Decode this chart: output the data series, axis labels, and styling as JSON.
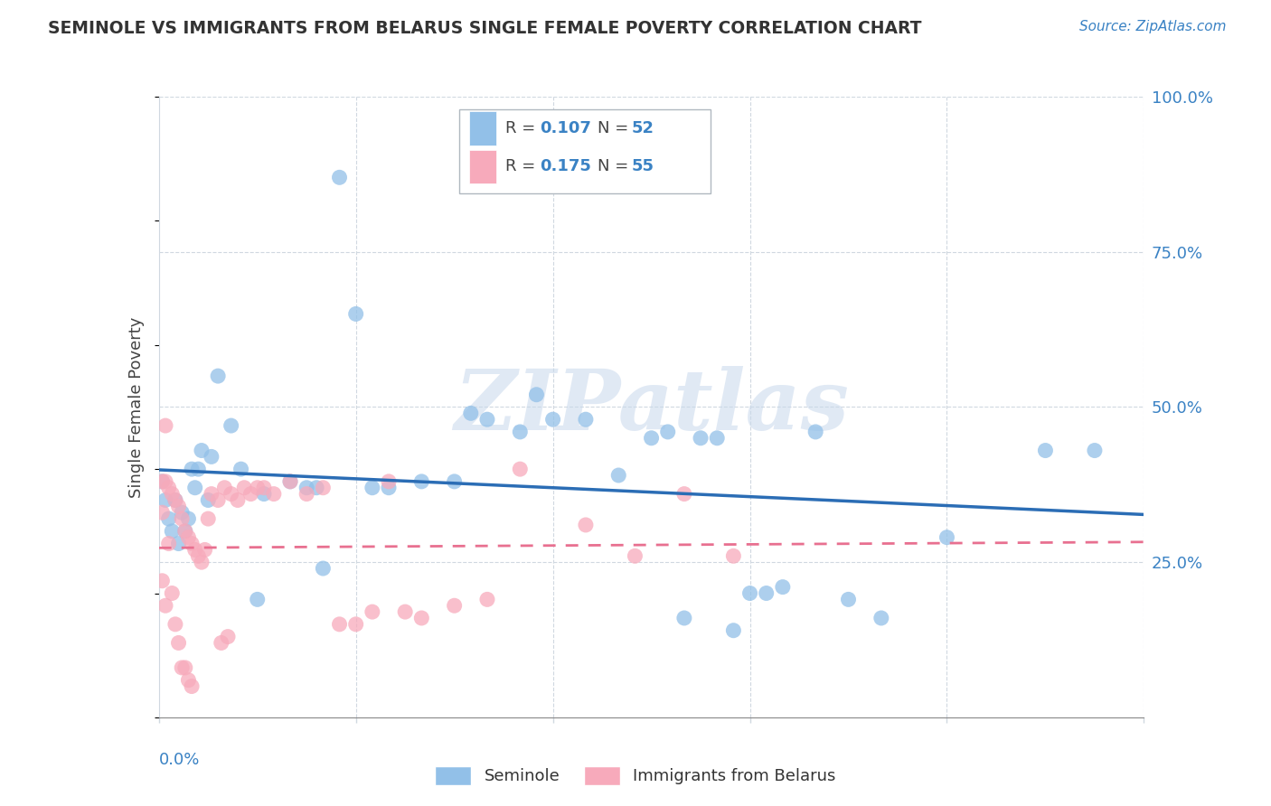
{
  "title": "SEMINOLE VS IMMIGRANTS FROM BELARUS SINGLE FEMALE POVERTY CORRELATION CHART",
  "source": "Source: ZipAtlas.com",
  "ylabel": "Single Female Poverty",
  "xmin": 0.0,
  "xmax": 0.3,
  "ymin": 0.0,
  "ymax": 1.0,
  "seminole_R": 0.107,
  "seminole_N": 52,
  "belarus_R": 0.175,
  "belarus_N": 55,
  "seminole_color": "#92C0E8",
  "belarus_color": "#F7AABB",
  "trend_seminole_color": "#2B6DB5",
  "trend_belarus_color": "#E87090",
  "seminole_x": [
    0.001,
    0.002,
    0.003,
    0.004,
    0.005,
    0.006,
    0.007,
    0.008,
    0.009,
    0.01,
    0.011,
    0.012,
    0.013,
    0.015,
    0.016,
    0.018,
    0.022,
    0.025,
    0.03,
    0.032,
    0.04,
    0.045,
    0.048,
    0.05,
    0.055,
    0.06,
    0.065,
    0.07,
    0.08,
    0.09,
    0.095,
    0.1,
    0.11,
    0.115,
    0.12,
    0.13,
    0.14,
    0.15,
    0.155,
    0.16,
    0.165,
    0.17,
    0.175,
    0.18,
    0.185,
    0.19,
    0.2,
    0.21,
    0.22,
    0.24,
    0.27,
    0.285
  ],
  "seminole_y": [
    0.38,
    0.35,
    0.32,
    0.3,
    0.35,
    0.28,
    0.33,
    0.3,
    0.32,
    0.4,
    0.37,
    0.4,
    0.43,
    0.35,
    0.42,
    0.55,
    0.47,
    0.4,
    0.19,
    0.36,
    0.38,
    0.37,
    0.37,
    0.24,
    0.87,
    0.65,
    0.37,
    0.37,
    0.38,
    0.38,
    0.49,
    0.48,
    0.46,
    0.52,
    0.48,
    0.48,
    0.39,
    0.45,
    0.46,
    0.16,
    0.45,
    0.45,
    0.14,
    0.2,
    0.2,
    0.21,
    0.46,
    0.19,
    0.16,
    0.29,
    0.43,
    0.43
  ],
  "belarus_x": [
    0.001,
    0.001,
    0.001,
    0.002,
    0.002,
    0.002,
    0.003,
    0.003,
    0.004,
    0.004,
    0.005,
    0.005,
    0.006,
    0.006,
    0.007,
    0.007,
    0.008,
    0.008,
    0.009,
    0.009,
    0.01,
    0.01,
    0.011,
    0.012,
    0.013,
    0.014,
    0.015,
    0.016,
    0.018,
    0.019,
    0.02,
    0.021,
    0.022,
    0.024,
    0.026,
    0.028,
    0.03,
    0.032,
    0.035,
    0.04,
    0.045,
    0.05,
    0.055,
    0.06,
    0.065,
    0.07,
    0.075,
    0.08,
    0.09,
    0.1,
    0.11,
    0.13,
    0.145,
    0.16,
    0.175
  ],
  "belarus_y": [
    0.38,
    0.33,
    0.22,
    0.47,
    0.38,
    0.18,
    0.37,
    0.28,
    0.36,
    0.2,
    0.35,
    0.15,
    0.34,
    0.12,
    0.32,
    0.08,
    0.3,
    0.08,
    0.29,
    0.06,
    0.28,
    0.05,
    0.27,
    0.26,
    0.25,
    0.27,
    0.32,
    0.36,
    0.35,
    0.12,
    0.37,
    0.13,
    0.36,
    0.35,
    0.37,
    0.36,
    0.37,
    0.37,
    0.36,
    0.38,
    0.36,
    0.37,
    0.15,
    0.15,
    0.17,
    0.38,
    0.17,
    0.16,
    0.18,
    0.19,
    0.4,
    0.31,
    0.26,
    0.36,
    0.26
  ],
  "watermark_text": "ZIPatlas",
  "grid_color": "#D0D8E0",
  "ytick_positions": [
    0.0,
    0.25,
    0.5,
    0.75,
    1.0
  ],
  "ytick_labels": [
    "",
    "25.0%",
    "50.0%",
    "75.0%",
    "100.0%"
  ],
  "xtick_positions": [
    0.0,
    0.06,
    0.12,
    0.18,
    0.24,
    0.3
  ],
  "title_fontsize": 13.5,
  "axis_label_fontsize": 13,
  "tick_fontsize": 13,
  "source_fontsize": 11
}
